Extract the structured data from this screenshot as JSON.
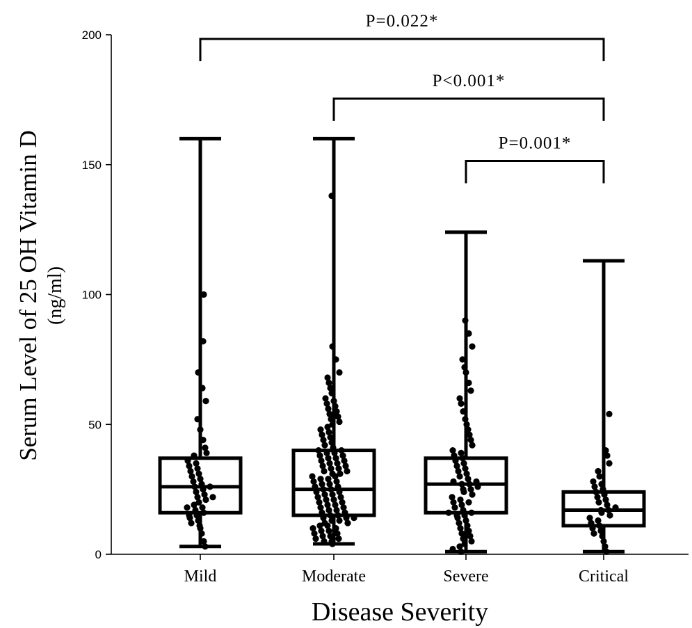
{
  "chart_data": {
    "type": "box",
    "xlabel": "Disease Severity",
    "ylabel_line1": "Serum Level of 25 OH Vitamin D",
    "ylabel_line2": "(ng/ml)",
    "ylim": [
      0,
      200
    ],
    "yticks": [
      0,
      50,
      100,
      150,
      200
    ],
    "categories": [
      "Mild",
      "Moderate",
      "Severe",
      "Critical"
    ],
    "boxes": [
      {
        "name": "Mild",
        "min": 3,
        "q1": 16,
        "median": 26,
        "q3": 37,
        "max": 160
      },
      {
        "name": "Moderate",
        "min": 4,
        "q1": 15,
        "median": 25,
        "q3": 40,
        "max": 160
      },
      {
        "name": "Severe",
        "min": 1,
        "q1": 16,
        "median": 27,
        "q3": 37,
        "max": 124
      },
      {
        "name": "Critical",
        "min": 1,
        "q1": 11,
        "median": 17,
        "q3": 24,
        "max": 113
      }
    ],
    "points": [
      [
        3,
        5,
        8,
        10,
        11,
        12,
        13,
        14,
        15,
        15,
        16,
        17,
        18,
        18,
        19,
        20,
        21,
        22,
        22,
        23,
        24,
        25,
        26,
        26,
        27,
        28,
        29,
        30,
        31,
        32,
        33,
        34,
        35,
        36,
        38,
        39,
        41,
        44,
        48,
        52,
        59,
        64,
        70,
        82,
        100
      ],
      [
        4,
        5,
        5,
        6,
        6,
        7,
        7,
        8,
        8,
        9,
        9,
        10,
        10,
        11,
        11,
        12,
        12,
        13,
        13,
        14,
        14,
        14,
        15,
        15,
        16,
        16,
        17,
        17,
        18,
        18,
        19,
        19,
        20,
        20,
        21,
        21,
        22,
        22,
        23,
        23,
        24,
        24,
        25,
        25,
        26,
        26,
        27,
        27,
        28,
        28,
        29,
        29,
        30,
        30,
        31,
        31,
        32,
        32,
        33,
        33,
        34,
        34,
        35,
        35,
        36,
        36,
        37,
        37,
        38,
        38,
        39,
        39,
        40,
        40,
        41,
        42,
        43,
        44,
        45,
        46,
        47,
        48,
        49,
        50,
        51,
        52,
        53,
        54,
        55,
        56,
        57,
        58,
        59,
        60,
        62,
        64,
        66,
        68,
        70,
        75,
        80,
        138
      ],
      [
        1,
        2,
        3,
        4,
        5,
        6,
        7,
        8,
        9,
        10,
        11,
        12,
        13,
        14,
        15,
        15,
        16,
        16,
        17,
        18,
        19,
        20,
        20,
        21,
        22,
        23,
        24,
        25,
        25,
        26,
        27,
        27,
        28,
        28,
        29,
        30,
        31,
        32,
        33,
        34,
        35,
        36,
        37,
        38,
        39,
        40,
        42,
        44,
        46,
        48,
        50,
        52,
        55,
        58,
        60,
        63,
        66,
        70,
        72,
        75,
        80,
        85,
        90
      ],
      [
        1,
        3,
        5,
        7,
        8,
        9,
        10,
        11,
        12,
        13,
        14,
        15,
        16,
        17,
        17,
        18,
        19,
        20,
        21,
        22,
        23,
        24,
        25,
        26,
        27,
        28,
        30,
        32,
        35,
        38,
        40,
        54
      ]
    ],
    "comparisons": [
      {
        "from": 0,
        "to": 3,
        "label": "P=0.022*",
        "level": 200
      },
      {
        "from": 1,
        "to": 3,
        "label": "P<0.001*",
        "level": 177
      },
      {
        "from": 2,
        "to": 3,
        "label": "P=0.001*",
        "level": 153
      }
    ]
  }
}
